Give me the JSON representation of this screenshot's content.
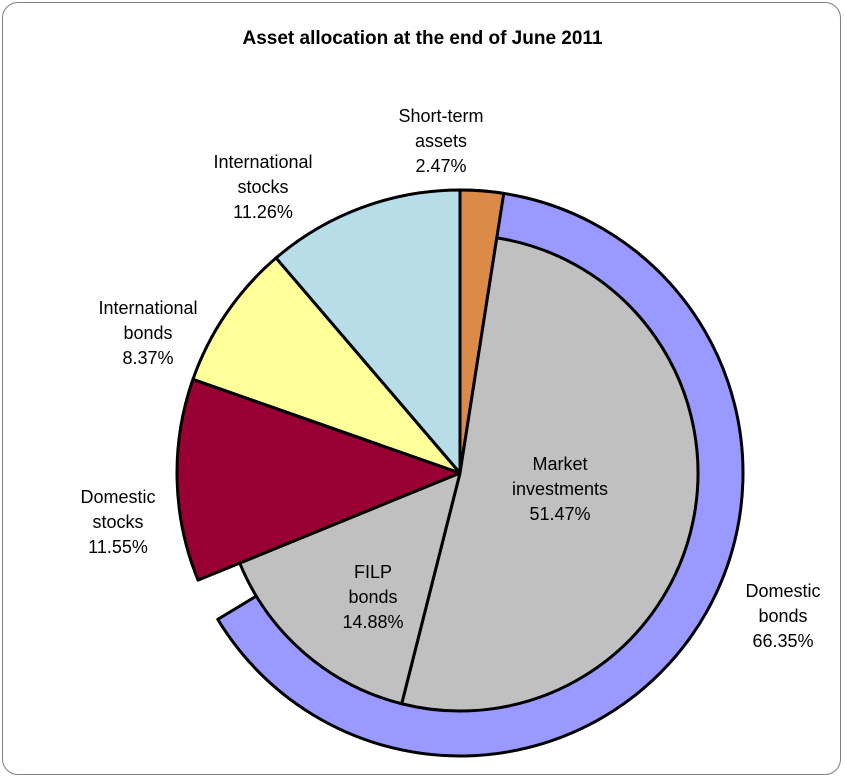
{
  "chart_data": {
    "type": "pie",
    "title": "Asset allocation at the end of June 2011",
    "slices": [
      {
        "name": "Short-term assets",
        "value": 2.47,
        "color": "#db8a47",
        "label_lines": [
          "Short-term",
          "assets",
          "2.47%"
        ]
      },
      {
        "name": "Market investments",
        "value": 51.47,
        "color": "#c0c0c0",
        "label_lines": [
          "Market",
          "investments",
          "51.47%"
        ]
      },
      {
        "name": "FILP bonds",
        "value": 14.88,
        "color": "#c0c0c0",
        "label_lines": [
          "FILP",
          "bonds",
          "14.88%"
        ]
      },
      {
        "name": "Domestic stocks",
        "value": 11.55,
        "color": "#990033",
        "label_lines": [
          "Domestic",
          "stocks",
          "11.55%"
        ]
      },
      {
        "name": "International bonds",
        "value": 8.37,
        "color": "#ffff99",
        "label_lines": [
          "International",
          "bonds",
          "8.37%"
        ]
      },
      {
        "name": "International stocks",
        "value": 11.26,
        "color": "#b7dde8",
        "label_lines": [
          "International",
          "stocks",
          "11.26%"
        ]
      }
    ],
    "outer_ring": [
      {
        "name": "Domestic bonds",
        "value": 66.35,
        "color": "#9999ff",
        "label_lines": [
          "Domestic",
          "bonds",
          "66.35%"
        ]
      }
    ]
  }
}
